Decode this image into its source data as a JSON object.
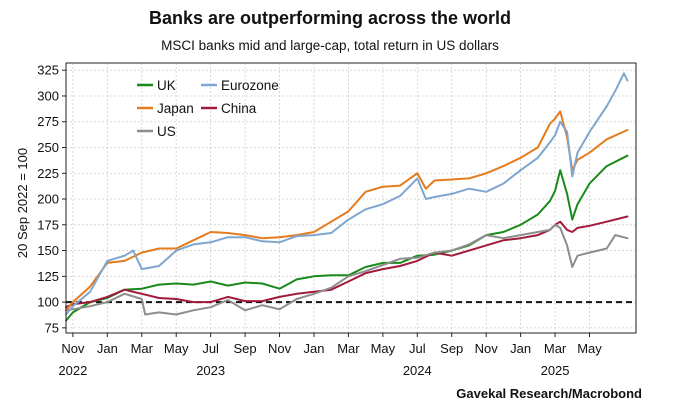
{
  "chart_data": {
    "type": "line",
    "title": "Banks are outperforming across the world",
    "subtitle": "MSCI banks mid and large-cap, total return in US dollars",
    "ylabel": "20 Sep 2022 = 100",
    "xlabel": "",
    "source": "Gavekal Research/Macrobond",
    "ylim": [
      70,
      332
    ],
    "yticks": [
      75,
      100,
      125,
      150,
      175,
      200,
      225,
      250,
      275,
      300,
      325
    ],
    "xlim": [
      -0.4,
      32.7
    ],
    "xticks": [
      {
        "x": 0,
        "label": "Nov",
        "year": "2022"
      },
      {
        "x": 2,
        "label": "Jan",
        "year": ""
      },
      {
        "x": 4,
        "label": "Mar",
        "year": ""
      },
      {
        "x": 6,
        "label": "May",
        "year": ""
      },
      {
        "x": 8,
        "label": "Jul",
        "year": "2023"
      },
      {
        "x": 10,
        "label": "Sep",
        "year": ""
      },
      {
        "x": 12,
        "label": "Nov",
        "year": ""
      },
      {
        "x": 14,
        "label": "Jan",
        "year": ""
      },
      {
        "x": 16,
        "label": "Mar",
        "year": ""
      },
      {
        "x": 18,
        "label": "May",
        "year": ""
      },
      {
        "x": 20,
        "label": "Jul",
        "year": "2024"
      },
      {
        "x": 22,
        "label": "Sep",
        "year": ""
      },
      {
        "x": 24,
        "label": "Nov",
        "year": ""
      },
      {
        "x": 26,
        "label": "Jan",
        "year": ""
      },
      {
        "x": 28,
        "label": "Mar",
        "year": "2025"
      },
      {
        "x": 30,
        "label": "May",
        "year": ""
      }
    ],
    "reference_line": {
      "y": 100,
      "style": "dashed"
    },
    "grid": true,
    "legend": {
      "placement": "top-left"
    },
    "series": [
      {
        "name": "UK",
        "color": "#1a8a1a",
        "points": [
          [
            -0.4,
            82
          ],
          [
            0,
            90
          ],
          [
            1,
            100
          ],
          [
            2,
            104
          ],
          [
            3,
            112
          ],
          [
            4,
            113
          ],
          [
            5,
            117
          ],
          [
            6,
            118
          ],
          [
            7,
            117
          ],
          [
            8,
            120
          ],
          [
            9,
            116
          ],
          [
            10,
            119
          ],
          [
            11,
            118
          ],
          [
            12,
            113
          ],
          [
            13,
            122
          ],
          [
            14,
            125
          ],
          [
            15,
            126
          ],
          [
            16,
            126
          ],
          [
            17,
            134
          ],
          [
            18,
            138
          ],
          [
            19,
            138
          ],
          [
            20,
            145
          ],
          [
            21,
            146
          ],
          [
            22,
            150
          ],
          [
            23,
            155
          ],
          [
            24,
            165
          ],
          [
            25,
            168
          ],
          [
            26,
            175
          ],
          [
            27,
            185
          ],
          [
            27.7,
            198
          ],
          [
            28,
            208
          ],
          [
            28.3,
            228
          ],
          [
            28.7,
            205
          ],
          [
            29,
            180
          ],
          [
            29.3,
            195
          ],
          [
            30,
            215
          ],
          [
            31,
            232
          ],
          [
            32.2,
            242
          ]
        ]
      },
      {
        "name": "Eurozone",
        "color": "#7ea6cf",
        "points": [
          [
            -0.4,
            88
          ],
          [
            0,
            96
          ],
          [
            1,
            110
          ],
          [
            2,
            140
          ],
          [
            3,
            145
          ],
          [
            3.5,
            150
          ],
          [
            4,
            132
          ],
          [
            5,
            135
          ],
          [
            6,
            150
          ],
          [
            7,
            156
          ],
          [
            8,
            158
          ],
          [
            9,
            163
          ],
          [
            10,
            163
          ],
          [
            11,
            159
          ],
          [
            12,
            158
          ],
          [
            13,
            164
          ],
          [
            14,
            165
          ],
          [
            15,
            167
          ],
          [
            16,
            180
          ],
          [
            17,
            190
          ],
          [
            18,
            195
          ],
          [
            19,
            203
          ],
          [
            20,
            220
          ],
          [
            20.5,
            200
          ],
          [
            21,
            202
          ],
          [
            22,
            205
          ],
          [
            23,
            210
          ],
          [
            24,
            207
          ],
          [
            25,
            215
          ],
          [
            26,
            228
          ],
          [
            27,
            240
          ],
          [
            27.7,
            255
          ],
          [
            28,
            262
          ],
          [
            28.3,
            275
          ],
          [
            28.7,
            265
          ],
          [
            29,
            222
          ],
          [
            29.3,
            245
          ],
          [
            30,
            265
          ],
          [
            31,
            290
          ],
          [
            31.5,
            305
          ],
          [
            32,
            322
          ],
          [
            32.2,
            315
          ]
        ]
      },
      {
        "name": "Japan",
        "color": "#e47b1c",
        "points": [
          [
            -0.4,
            92
          ],
          [
            0,
            100
          ],
          [
            1,
            115
          ],
          [
            2,
            138
          ],
          [
            3,
            140
          ],
          [
            4,
            148
          ],
          [
            5,
            152
          ],
          [
            6,
            152
          ],
          [
            7,
            160
          ],
          [
            8,
            168
          ],
          [
            9,
            167
          ],
          [
            10,
            165
          ],
          [
            11,
            162
          ],
          [
            12,
            163
          ],
          [
            13,
            165
          ],
          [
            14,
            168
          ],
          [
            15,
            178
          ],
          [
            16,
            188
          ],
          [
            17,
            207
          ],
          [
            18,
            212
          ],
          [
            19,
            213
          ],
          [
            20,
            225
          ],
          [
            20.5,
            210
          ],
          [
            21,
            218
          ],
          [
            22,
            219
          ],
          [
            23,
            220
          ],
          [
            24,
            225
          ],
          [
            25,
            232
          ],
          [
            26,
            240
          ],
          [
            27,
            250
          ],
          [
            27.7,
            273
          ],
          [
            28,
            278
          ],
          [
            28.3,
            285
          ],
          [
            28.7,
            260
          ],
          [
            29,
            228
          ],
          [
            29.3,
            238
          ],
          [
            30,
            245
          ],
          [
            31,
            258
          ],
          [
            32.2,
            267
          ]
        ]
      },
      {
        "name": "China",
        "color": "#a11a3c",
        "points": [
          [
            -0.4,
            95
          ],
          [
            0,
            98
          ],
          [
            1,
            100
          ],
          [
            2,
            105
          ],
          [
            3,
            112
          ],
          [
            4,
            108
          ],
          [
            5,
            104
          ],
          [
            6,
            103
          ],
          [
            7,
            100
          ],
          [
            8,
            100
          ],
          [
            9,
            105
          ],
          [
            10,
            101
          ],
          [
            11,
            101
          ],
          [
            12,
            105
          ],
          [
            13,
            108
          ],
          [
            14,
            110
          ],
          [
            15,
            112
          ],
          [
            16,
            120
          ],
          [
            17,
            128
          ],
          [
            18,
            132
          ],
          [
            19,
            135
          ],
          [
            20,
            140
          ],
          [
            21,
            148
          ],
          [
            22,
            145
          ],
          [
            23,
            150
          ],
          [
            24,
            155
          ],
          [
            25,
            160
          ],
          [
            26,
            162
          ],
          [
            27,
            165
          ],
          [
            27.7,
            170
          ],
          [
            28,
            175
          ],
          [
            28.3,
            178
          ],
          [
            28.7,
            170
          ],
          [
            29,
            168
          ],
          [
            29.3,
            172
          ],
          [
            30,
            174
          ],
          [
            31,
            178
          ],
          [
            32.2,
            183
          ]
        ]
      },
      {
        "name": "US",
        "color": "#8d8d8d",
        "points": [
          [
            -0.4,
            92
          ],
          [
            0,
            93
          ],
          [
            1,
            96
          ],
          [
            2,
            100
          ],
          [
            3,
            108
          ],
          [
            4,
            103
          ],
          [
            4.2,
            88
          ],
          [
            5,
            90
          ],
          [
            6,
            88
          ],
          [
            7,
            92
          ],
          [
            8,
            95
          ],
          [
            9,
            102
          ],
          [
            10,
            92
          ],
          [
            11,
            97
          ],
          [
            12,
            93
          ],
          [
            13,
            103
          ],
          [
            14,
            108
          ],
          [
            15,
            114
          ],
          [
            16,
            125
          ],
          [
            17,
            130
          ],
          [
            18,
            136
          ],
          [
            19,
            142
          ],
          [
            20,
            143
          ],
          [
            21,
            148
          ],
          [
            22,
            150
          ],
          [
            23,
            156
          ],
          [
            24,
            165
          ],
          [
            25,
            162
          ],
          [
            26,
            165
          ],
          [
            27,
            168
          ],
          [
            27.7,
            170
          ],
          [
            28,
            175
          ],
          [
            28.3,
            172
          ],
          [
            28.7,
            155
          ],
          [
            29,
            134
          ],
          [
            29.3,
            145
          ],
          [
            30,
            148
          ],
          [
            31,
            152
          ],
          [
            31.5,
            165
          ],
          [
            32.2,
            162
          ]
        ]
      }
    ]
  }
}
